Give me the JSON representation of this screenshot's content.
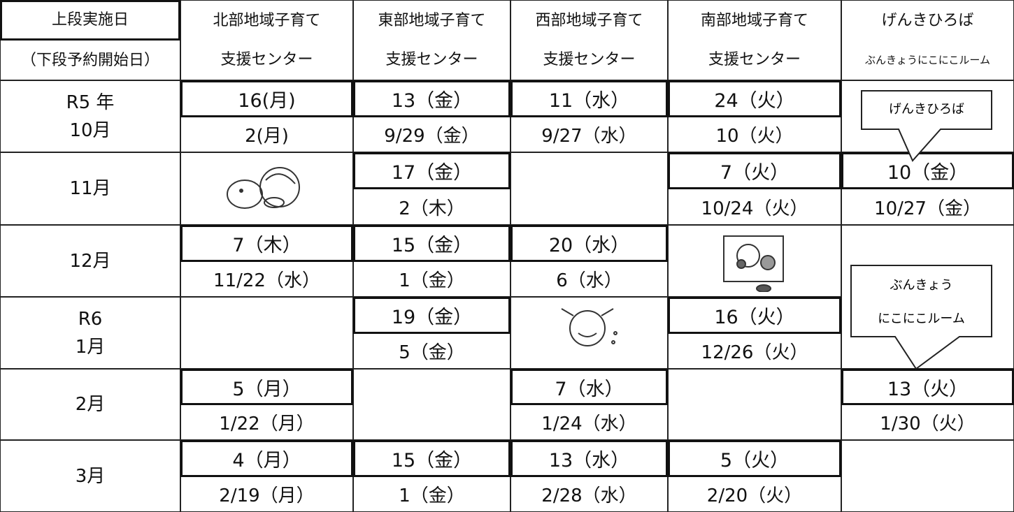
{
  "header": {
    "row_label": [
      "上段実施日",
      "（下段予約開始日）"
    ],
    "centers": [
      [
        "北部地域子育て",
        "支援センター"
      ],
      [
        "東部地域子育て",
        "支援センター"
      ],
      [
        "西部地域子育て",
        "支援センター"
      ],
      [
        "南部地域子育て",
        "支援センター"
      ],
      [
        "げんきひろば",
        "ぶんきょうにこにこルーム"
      ]
    ]
  },
  "rows": [
    {
      "month": [
        "R5 年",
        "10月"
      ],
      "cells": [
        {
          "event": "16(月)",
          "reservation": "2(月)"
        },
        {
          "event": "13（金）",
          "reservation": "9/29（金）"
        },
        {
          "event": "11（水）",
          "reservation": "9/27（水）"
        },
        {
          "event": "24（火）",
          "reservation": "10（火）"
        },
        null
      ]
    },
    {
      "month": [
        "11月"
      ],
      "cells": [
        null,
        {
          "event": "17（金）",
          "reservation": "2（木）"
        },
        null,
        {
          "event": "7（火）",
          "reservation": "10/24（火）"
        },
        {
          "event": "10（金）",
          "reservation": "10/27（金）"
        }
      ]
    },
    {
      "month": [
        "12月"
      ],
      "cells": [
        {
          "event": "7（木）",
          "reservation": "11/22（水）"
        },
        {
          "event": "15（金）",
          "reservation": "1（金）"
        },
        {
          "event": "20（水）",
          "reservation": "6（水）"
        },
        null,
        null
      ]
    },
    {
      "month": [
        "R6",
        "1月"
      ],
      "cells": [
        null,
        {
          "event": "19（金）",
          "reservation": "5（金）"
        },
        null,
        {
          "event": "16（火）",
          "reservation": "12/26（火）"
        },
        null
      ]
    },
    {
      "month": [
        "2月"
      ],
      "cells": [
        {
          "event": "5（月）",
          "reservation": "1/22（月）"
        },
        null,
        {
          "event": "7（水）",
          "reservation": "1/24（水）"
        },
        null,
        {
          "event": "13（火）",
          "reservation": "1/30（火）"
        }
      ]
    },
    {
      "month": [
        "3月"
      ],
      "cells": [
        {
          "event": "4（月）",
          "reservation": "2/19（月）"
        },
        {
          "event": "15（金）",
          "reservation": "1（金）"
        },
        {
          "event": "13（水）",
          "reservation": "2/28（水）"
        },
        {
          "event": "5（火）",
          "reservation": "2/20（火）"
        },
        null
      ]
    }
  ],
  "callouts": [
    [
      "げんきひろば"
    ],
    [
      "ぶんきょう",
      "にこにこルーム"
    ]
  ]
}
